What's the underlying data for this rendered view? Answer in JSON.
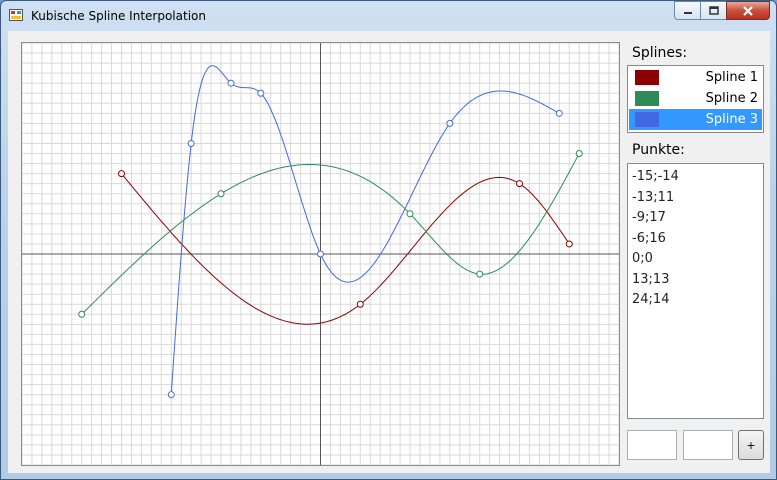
{
  "window": {
    "title": "Kubische Spline Interpolation"
  },
  "splines_label": "Splines:",
  "points_label": "Punkte:",
  "splines": [
    {
      "label": "Spline 1",
      "color": "#8b0000",
      "selected": false
    },
    {
      "label": "Spline 2",
      "color": "#2e8b57",
      "selected": false
    },
    {
      "label": "Spline 3",
      "color": "#4169e1",
      "selected": true
    }
  ],
  "points": [
    "-15;-14",
    "-13;11",
    "-9;17",
    "-6;16",
    "0;0",
    "13;13",
    "24;14"
  ],
  "add_button": "+",
  "chart_data": {
    "type": "line",
    "grid": true,
    "xlim": [
      -30,
      30
    ],
    "ylim": [
      -21,
      21
    ],
    "series": [
      {
        "color": "#8b0000",
        "x": [
          -20,
          4,
          20,
          25
        ],
        "y": [
          8,
          -5,
          7,
          1
        ]
      },
      {
        "color": "#2e8b57",
        "x": [
          -24,
          -10,
          9,
          16,
          26
        ],
        "y": [
          -6,
          6,
          4,
          -2,
          10
        ]
      },
      {
        "color": "#4169e1",
        "x": [
          -15,
          -13,
          -9,
          -6,
          0,
          13,
          24
        ],
        "y": [
          -14,
          11,
          17,
          16,
          0,
          13,
          14
        ]
      }
    ]
  }
}
